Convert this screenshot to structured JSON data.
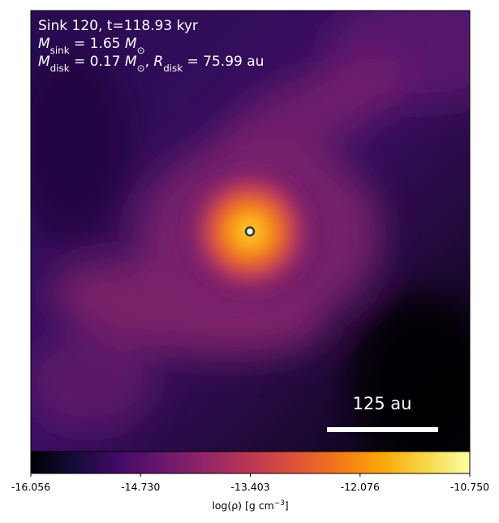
{
  "chart_data": {
    "type": "density-map",
    "annotations": [
      [
        {
          "t": "Sink 120, t=118.93 kyr",
          "style": "normal"
        }
      ],
      [
        {
          "t": "M",
          "style": "italic"
        },
        {
          "t": "sink",
          "style": "sub"
        },
        {
          "t": " = 1.65 ",
          "style": "normal"
        },
        {
          "t": "M",
          "style": "italic"
        },
        {
          "t": "⊙",
          "style": "sub"
        }
      ],
      [
        {
          "t": "M",
          "style": "italic"
        },
        {
          "t": "disk",
          "style": "sub"
        },
        {
          "t": " = 0.17 ",
          "style": "normal"
        },
        {
          "t": "M",
          "style": "italic"
        },
        {
          "t": "⊙",
          "style": "sub"
        },
        {
          "t": ", ",
          "style": "normal"
        },
        {
          "t": "R",
          "style": "italic"
        },
        {
          "t": "disk",
          "style": "sub"
        },
        {
          "t": " = 75.99 au",
          "style": "normal"
        }
      ]
    ],
    "scale_bar": {
      "label": "125 au"
    },
    "colorbar": {
      "colormap": "inferno",
      "clim": [
        -16.056,
        -10.75
      ],
      "ticks": [
        -16.056,
        {
          "value": -14.73,
          "label": "-14.730"
        },
        -13.403,
        -12.076,
        {
          "value": -10.75,
          "label": "-10.750"
        }
      ],
      "label": [
        {
          "t": "log(ρ) [g cm",
          "style": "normal"
        },
        {
          "t": "−3",
          "style": "sup"
        },
        {
          "t": "]",
          "style": "normal"
        }
      ]
    }
  }
}
